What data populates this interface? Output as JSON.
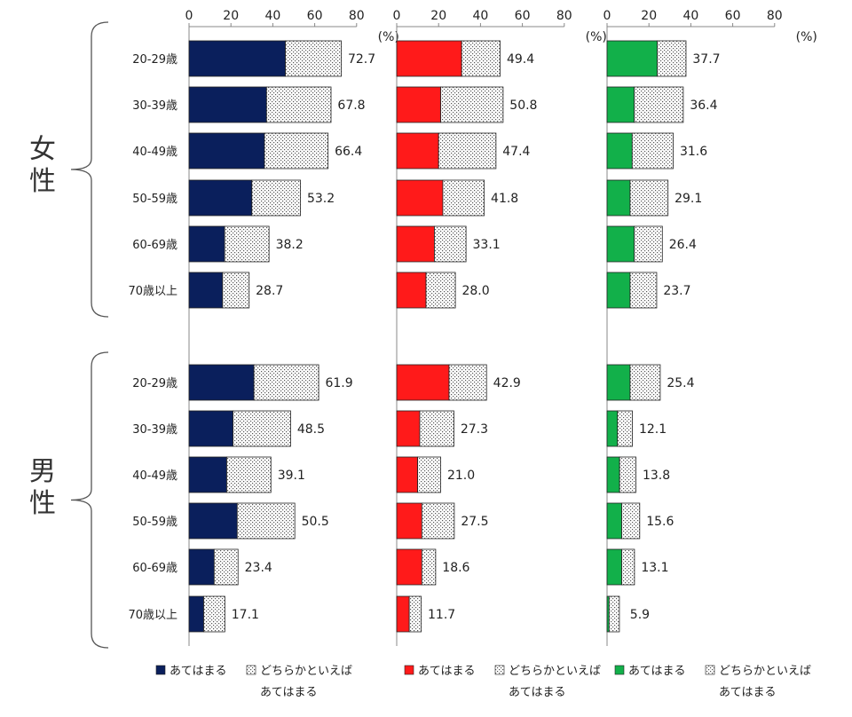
{
  "chart_data": {
    "type": "bar",
    "stacked": true,
    "unit": "(%)",
    "xlim": [
      0,
      80
    ],
    "ticks": [
      0,
      20,
      40,
      60,
      80
    ],
    "groups": [
      "女性",
      "男性"
    ],
    "categories": [
      "20-29歳",
      "30-39歳",
      "40-49歳",
      "50-59歳",
      "60-69歳",
      "70歳以上"
    ],
    "panels": [
      {
        "color": "#0a1f5c",
        "legend": {
          "applies": "あてはまる",
          "somewhat_line1": "どちらかといえば",
          "somewhat_line2": "あてはまる"
        },
        "series": [
          {
            "group": "女性",
            "applies": [
              46,
              37,
              36,
              30,
              17,
              16
            ],
            "total": [
              72.7,
              67.8,
              66.4,
              53.2,
              38.2,
              28.7
            ]
          },
          {
            "group": "男性",
            "applies": [
              31,
              21,
              18,
              23,
              12,
              7
            ],
            "total": [
              61.9,
              48.5,
              39.1,
              50.5,
              23.4,
              17.1
            ]
          }
        ]
      },
      {
        "color": "#ff1a1a",
        "legend": {
          "applies": "あてはまる",
          "somewhat_line1": "どちらかといえば",
          "somewhat_line2": "あてはまる"
        },
        "series": [
          {
            "group": "女性",
            "applies": [
              31,
              21,
              20,
              22,
              18,
              14
            ],
            "total": [
              49.4,
              50.8,
              47.4,
              41.8,
              33.1,
              28.0
            ]
          },
          {
            "group": "男性",
            "applies": [
              25,
              11,
              10,
              12,
              12,
              6
            ],
            "total": [
              42.9,
              27.3,
              21.0,
              27.5,
              18.6,
              11.7
            ]
          }
        ]
      },
      {
        "color": "#12b04a",
        "legend": {
          "applies": "あてはまる",
          "somewhat_line1": "どちらかといえば",
          "somewhat_line2": "あてはまる"
        },
        "series": [
          {
            "group": "女性",
            "applies": [
              24,
              13,
              12,
              11,
              13,
              11
            ],
            "total": [
              37.7,
              36.4,
              31.6,
              29.1,
              26.4,
              23.7
            ]
          },
          {
            "group": "男性",
            "applies": [
              11,
              5,
              6,
              7,
              7,
              1
            ],
            "total": [
              25.4,
              12.1,
              13.8,
              15.6,
              13.1,
              5.9
            ]
          }
        ]
      }
    ]
  }
}
